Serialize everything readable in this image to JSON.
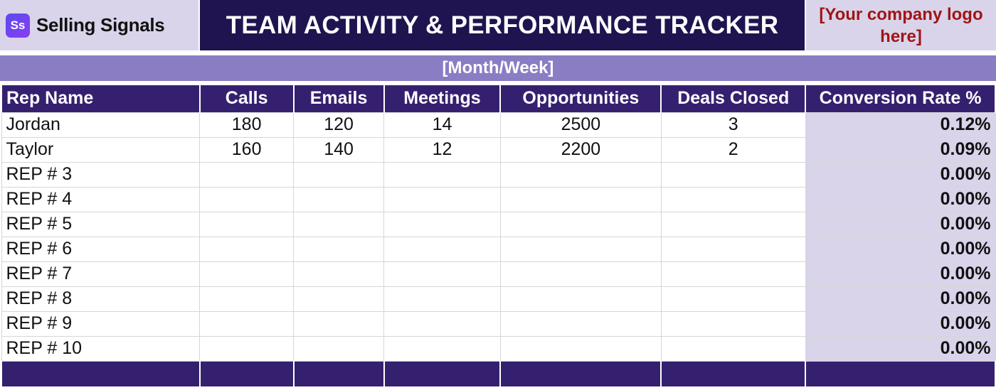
{
  "brand": {
    "mark": "Ss",
    "name": "Selling Signals"
  },
  "title": "TEAM ACTIVITY & PERFORMANCE TRACKER",
  "logo_placeholder": "[Your company logo here]",
  "period": "[Month/Week]",
  "columns": [
    "Rep Name",
    "Calls",
    "Emails",
    "Meetings",
    "Opportunities",
    "Deals Closed",
    "Conversion Rate %"
  ],
  "rows": [
    {
      "name": "Jordan",
      "calls": "180",
      "emails": "120",
      "meetings": "14",
      "opportunities": "2500",
      "deals": "3",
      "rate": "0.12%"
    },
    {
      "name": "Taylor",
      "calls": "160",
      "emails": "140",
      "meetings": "12",
      "opportunities": "2200",
      "deals": "2",
      "rate": "0.09%"
    },
    {
      "name": "REP # 3",
      "calls": "",
      "emails": "",
      "meetings": "",
      "opportunities": "",
      "deals": "",
      "rate": "0.00%"
    },
    {
      "name": "REP # 4",
      "calls": "",
      "emails": "",
      "meetings": "",
      "opportunities": "",
      "deals": "",
      "rate": "0.00%"
    },
    {
      "name": "REP # 5",
      "calls": "",
      "emails": "",
      "meetings": "",
      "opportunities": "",
      "deals": "",
      "rate": "0.00%"
    },
    {
      "name": "REP # 6",
      "calls": "",
      "emails": "",
      "meetings": "",
      "opportunities": "",
      "deals": "",
      "rate": "0.00%"
    },
    {
      "name": "REP # 7",
      "calls": "",
      "emails": "",
      "meetings": "",
      "opportunities": "",
      "deals": "",
      "rate": "0.00%"
    },
    {
      "name": "REP # 8",
      "calls": "",
      "emails": "",
      "meetings": "",
      "opportunities": "",
      "deals": "",
      "rate": "0.00%"
    },
    {
      "name": "REP # 9",
      "calls": "",
      "emails": "",
      "meetings": "",
      "opportunities": "",
      "deals": "",
      "rate": "0.00%"
    },
    {
      "name": "REP # 10",
      "calls": "",
      "emails": "",
      "meetings": "",
      "opportunities": "",
      "deals": "",
      "rate": "0.00%"
    }
  ],
  "colors": {
    "header_bg": "#35206f",
    "title_bg": "#1f1450",
    "period_bg": "#8a7dc4",
    "lavender": "#d9d4ea",
    "logo_text": "#a01515"
  }
}
